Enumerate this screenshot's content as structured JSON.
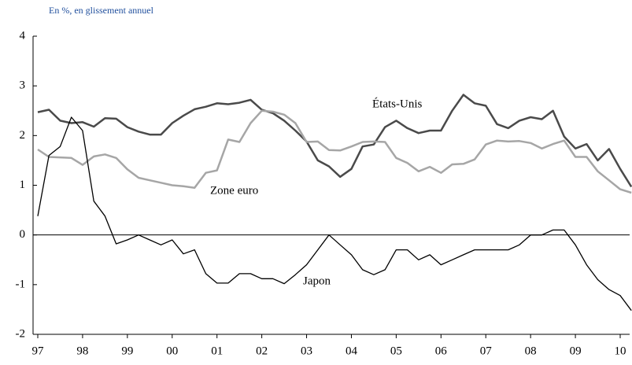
{
  "chart_data": {
    "type": "line",
    "subtitle": "En %, en glissement annuel",
    "categories": [
      "97",
      null,
      null,
      null,
      "98",
      null,
      null,
      null,
      "99",
      null,
      null,
      null,
      "00",
      null,
      null,
      null,
      "01",
      null,
      null,
      null,
      "02",
      null,
      null,
      null,
      "03",
      null,
      null,
      null,
      "04",
      null,
      null,
      null,
      "05",
      null,
      null,
      null,
      "06",
      null,
      null,
      null,
      "07",
      null,
      null,
      null,
      "08",
      null,
      null,
      null,
      "09",
      null,
      null,
      null,
      "10",
      null
    ],
    "series": [
      {
        "name": "États-Unis",
        "color": "#4a4a4a",
        "values": [
          2.47,
          2.52,
          2.3,
          2.25,
          2.27,
          2.18,
          2.35,
          2.34,
          2.17,
          2.08,
          2.02,
          2.02,
          2.25,
          2.4,
          2.53,
          2.58,
          2.65,
          2.63,
          2.66,
          2.72,
          2.52,
          2.45,
          2.3,
          2.1,
          1.88,
          1.5,
          1.38,
          1.17,
          1.33,
          1.78,
          1.82,
          2.17,
          2.3,
          2.15,
          2.05,
          2.1,
          2.1,
          2.5,
          2.82,
          2.65,
          2.6,
          2.23,
          2.15,
          2.3,
          2.37,
          2.33,
          2.5,
          1.98,
          1.74,
          1.83,
          1.5,
          1.73,
          1.33,
          0.97
        ]
      },
      {
        "name": "Zone euro",
        "color": "#a6a6a6",
        "values": [
          1.72,
          1.57,
          1.56,
          1.55,
          1.41,
          1.58,
          1.62,
          1.55,
          1.32,
          1.15,
          1.1,
          1.05,
          1.0,
          0.98,
          0.95,
          1.25,
          1.3,
          1.92,
          1.87,
          2.25,
          2.5,
          2.48,
          2.42,
          2.25,
          1.87,
          1.88,
          1.71,
          1.7,
          1.78,
          1.87,
          1.88,
          1.87,
          1.55,
          1.45,
          1.28,
          1.37,
          1.25,
          1.42,
          1.43,
          1.52,
          1.82,
          1.9,
          1.88,
          1.89,
          1.85,
          1.74,
          1.83,
          1.9,
          1.57,
          1.57,
          1.28,
          1.1,
          0.92,
          0.85
        ]
      },
      {
        "name": "Japon",
        "color": "#000000",
        "values": [
          0.38,
          1.6,
          1.78,
          2.37,
          2.1,
          0.68,
          0.38,
          -0.18,
          -0.1,
          0.0,
          -0.1,
          -0.2,
          -0.1,
          -0.38,
          -0.3,
          -0.78,
          -0.97,
          -0.97,
          -0.78,
          -0.78,
          -0.88,
          -0.88,
          -0.98,
          -0.8,
          -0.6,
          -0.3,
          0.0,
          -0.2,
          -0.4,
          -0.7,
          -0.8,
          -0.7,
          -0.3,
          -0.3,
          -0.5,
          -0.4,
          -0.6,
          -0.5,
          -0.4,
          -0.3,
          -0.3,
          -0.3,
          -0.3,
          -0.2,
          0.0,
          0.0,
          0.1,
          0.1,
          -0.2,
          -0.6,
          -0.9,
          -1.1,
          -1.22,
          -1.52
        ]
      }
    ],
    "ylim": [
      -2,
      4
    ],
    "yticks": [
      -2,
      -1,
      0,
      1,
      2,
      3,
      4
    ]
  }
}
